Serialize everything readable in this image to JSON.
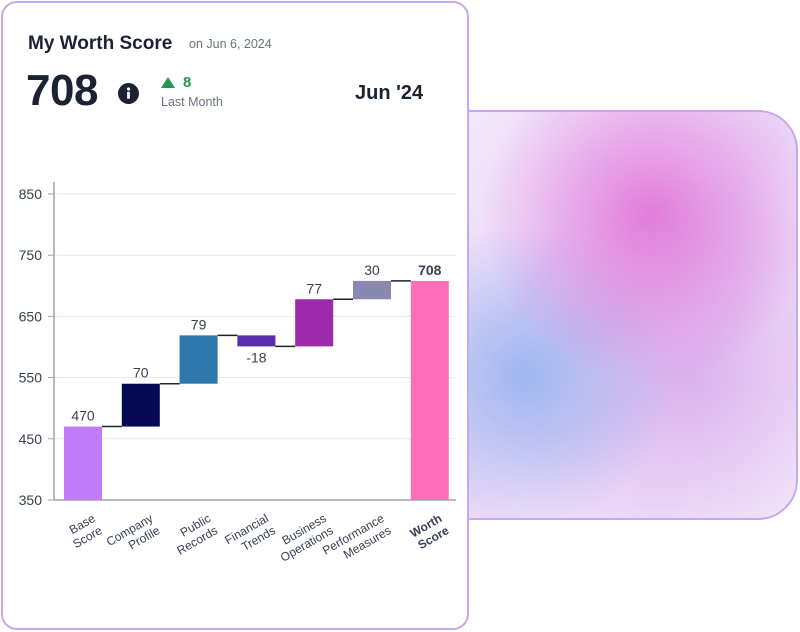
{
  "header": {
    "title": "My Worth Score",
    "as_of": "on Jun 6, 2024",
    "score": "708",
    "delta": "8",
    "delta_label": "Last Month",
    "period": "Jun '24"
  },
  "colors": {
    "card_border": "#c6a8ef",
    "delta_green": "#219653",
    "connector": "#1b2232",
    "grid": "#e5e7eb"
  },
  "chart_data": {
    "type": "bar",
    "subtype": "waterfall",
    "ylim": [
      350,
      850
    ],
    "yticks": [
      350,
      450,
      550,
      650,
      750,
      850
    ],
    "grid": true,
    "categories": [
      [
        "Base",
        "Score"
      ],
      [
        "Company",
        "Profile"
      ],
      [
        "Public",
        "Records"
      ],
      [
        "Financial",
        "Trends"
      ],
      [
        "Business",
        "Operations"
      ],
      [
        "Performance",
        "Measures"
      ],
      [
        "Worth",
        "Score"
      ]
    ],
    "values": [
      470,
      70,
      79,
      -18,
      77,
      30,
      708
    ],
    "value_labels": [
      "470",
      "70",
      "79",
      "-18",
      "77",
      "30",
      "708"
    ],
    "kinds": [
      "total",
      "delta",
      "delta",
      "delta",
      "delta",
      "delta",
      "total"
    ],
    "colors": [
      "#c07cf8",
      "#050a52",
      "#2e78ad",
      "#5b2cad",
      "#9c2aaa",
      "#8888b0",
      "#fe6fba"
    ],
    "emphasis_index": 6
  }
}
